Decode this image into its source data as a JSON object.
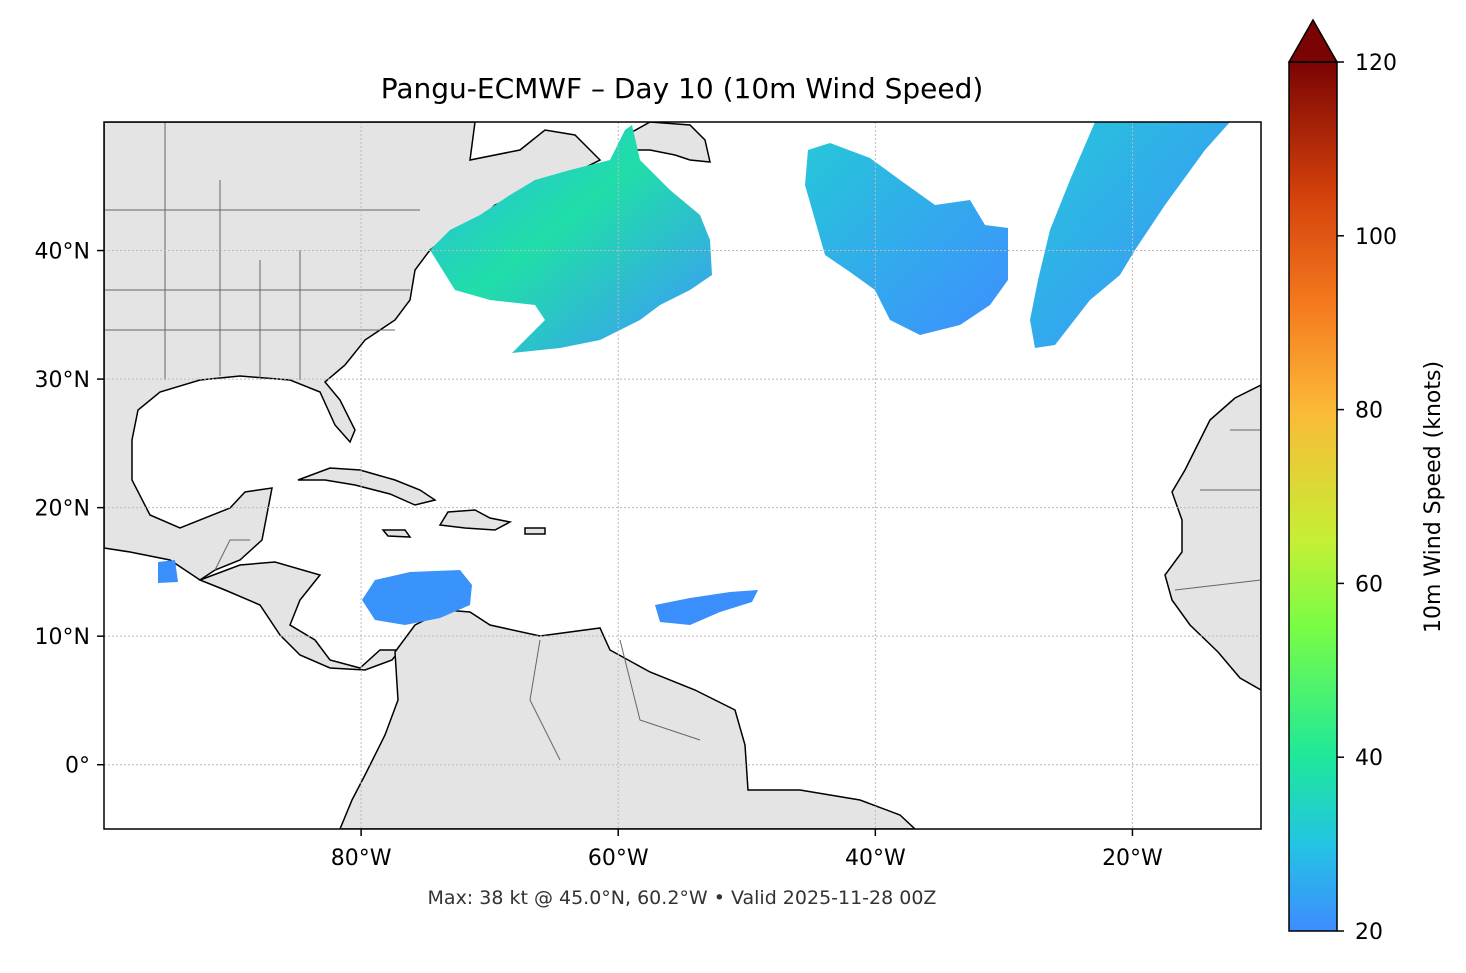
{
  "map": {
    "title": "Pangu-ECMWF – Day 10 (10m Wind Speed)",
    "footnote": "Max: 38 kt @ 45.0°N, 60.2°W • Valid 2025-11-28 00Z",
    "lonlim": [
      -100,
      -10
    ],
    "latlim": [
      -5,
      50
    ],
    "lon_ticks": [
      {
        "value": -80,
        "label": "80°W"
      },
      {
        "value": -60,
        "label": "60°W"
      },
      {
        "value": -40,
        "label": "40°W"
      },
      {
        "value": -20,
        "label": "20°W"
      }
    ],
    "lat_ticks": [
      {
        "value": 0,
        "label": "0°"
      },
      {
        "value": 10,
        "label": "10°N"
      },
      {
        "value": 20,
        "label": "20°N"
      },
      {
        "value": 30,
        "label": "30°N"
      },
      {
        "value": 40,
        "label": "40°N"
      }
    ],
    "grid": true,
    "colorbar": {
      "label": "10m Wind Speed (knots)",
      "lim": [
        20,
        120
      ],
      "ticks": [
        20,
        40,
        60,
        80,
        100,
        120
      ],
      "extend": "max"
    }
  }
}
